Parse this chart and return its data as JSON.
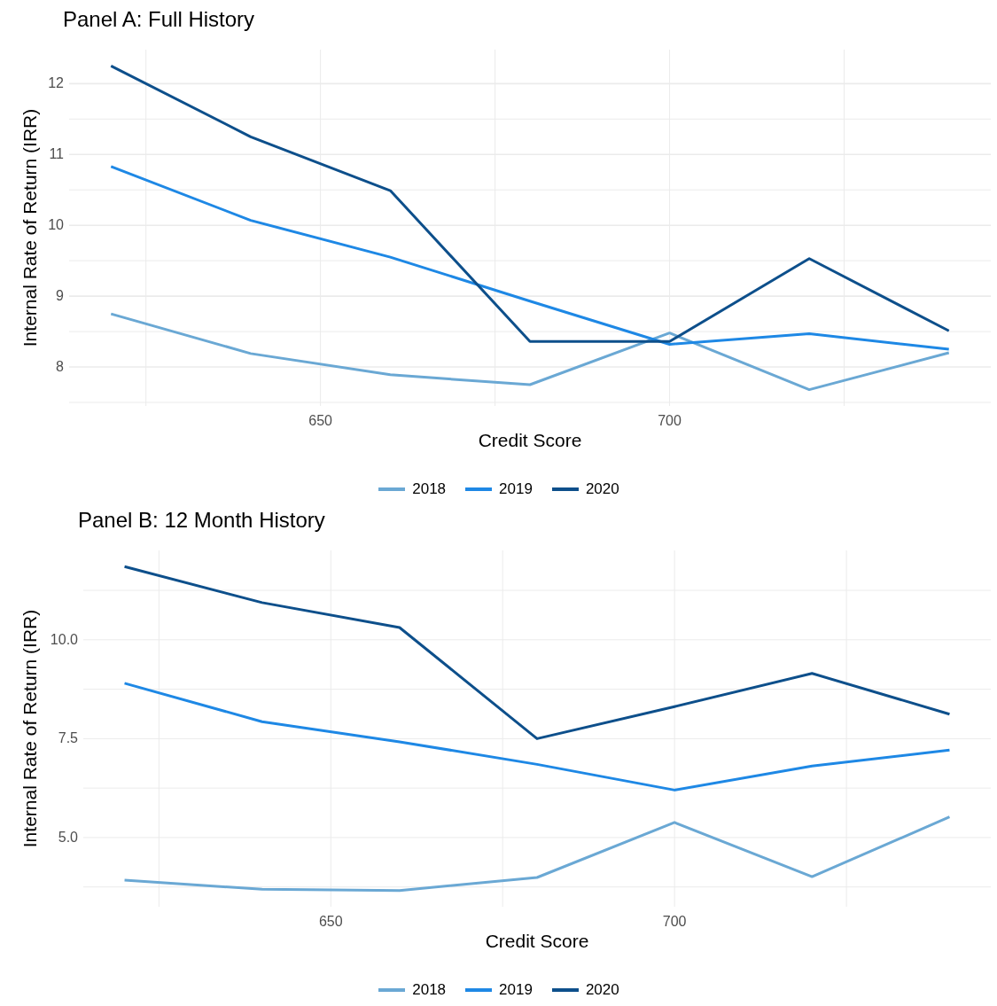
{
  "chart_data": [
    {
      "type": "line",
      "title": "Panel A: Full History",
      "xlabel": "Credit Score",
      "ylabel": "Internal Rate of Return (IRR)",
      "x": [
        620,
        640,
        660,
        680,
        700,
        720,
        740
      ],
      "series": [
        {
          "name": "2018",
          "color": "#6aa8d4",
          "values": [
            8.75,
            8.19,
            7.89,
            7.75,
            8.48,
            7.68,
            8.2
          ]
        },
        {
          "name": "2019",
          "color": "#1e88e5",
          "values": [
            10.83,
            10.07,
            9.55,
            8.93,
            8.32,
            8.47,
            8.25
          ]
        },
        {
          "name": "2020",
          "color": "#0d4f8b",
          "values": [
            12.25,
            11.25,
            10.49,
            8.36,
            8.36,
            9.53,
            8.51
          ]
        }
      ],
      "xlim": [
        614,
        746
      ],
      "xticks": [
        {
          "value": 625,
          "label": null
        },
        {
          "value": 650,
          "label": "650"
        },
        {
          "value": 675,
          "label": null
        },
        {
          "value": 700,
          "label": "700"
        },
        {
          "value": 725,
          "label": null
        }
      ],
      "ylim": [
        7.45,
        12.48
      ],
      "yticks": [
        {
          "value": 7.5,
          "label": null
        },
        8,
        {
          "value": 8.5,
          "label": null
        },
        9,
        {
          "value": 9.5,
          "label": null
        },
        10,
        {
          "value": 10.5,
          "label": null
        },
        11,
        {
          "value": 11.5,
          "label": null
        },
        12
      ],
      "grid": true,
      "legend": "bottom",
      "marker": "none",
      "line_style": "solid"
    },
    {
      "type": "line",
      "title": "Panel B: 12 Month History",
      "xlabel": "Credit Score",
      "ylabel": "Internal Rate of Return (IRR)",
      "x": [
        620,
        640,
        660,
        680,
        700,
        720,
        740
      ],
      "series": [
        {
          "name": "2018",
          "color": "#6aa8d4",
          "values": [
            3.92,
            3.69,
            3.66,
            3.99,
            5.38,
            4.01,
            5.52
          ]
        },
        {
          "name": "2019",
          "color": "#1e88e5",
          "values": [
            8.9,
            7.93,
            7.42,
            6.85,
            6.2,
            6.81,
            7.21
          ]
        },
        {
          "name": "2020",
          "color": "#0d4f8b",
          "values": [
            11.85,
            10.94,
            10.31,
            7.5,
            8.31,
            9.15,
            8.12
          ]
        }
      ],
      "xlim": [
        614,
        746
      ],
      "xticks": [
        {
          "value": 625,
          "label": null
        },
        {
          "value": 650,
          "label": "650"
        },
        {
          "value": 675,
          "label": null
        },
        {
          "value": 700,
          "label": "700"
        },
        {
          "value": 725,
          "label": null
        }
      ],
      "ylim": [
        3.25,
        12.26
      ],
      "yticks": [
        {
          "value": 3.75,
          "label": null
        },
        {
          "value": 5,
          "label": "5.0"
        },
        {
          "value": 6.25,
          "label": null
        },
        {
          "value": 7.5,
          "label": "7.5"
        },
        {
          "value": 8.75,
          "label": null
        },
        {
          "value": 10,
          "label": "10.0"
        },
        {
          "value": 11.25,
          "label": null
        }
      ],
      "grid": true,
      "legend": "bottom",
      "marker": "none",
      "line_style": "solid"
    }
  ]
}
